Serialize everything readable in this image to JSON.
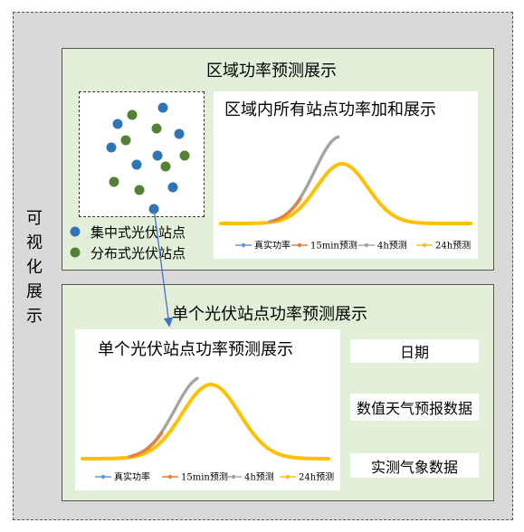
{
  "side_label": [
    "可",
    "视",
    "化",
    "展",
    "示"
  ],
  "region_panel": {
    "title": "区域功率预测展示",
    "legend": {
      "centralized": "集中式光伏站点",
      "distributed": "分布式光伏站点"
    },
    "chart_title": "区域内所有站点功率加和展示"
  },
  "single_panel": {
    "title": "单个光伏站点功率预测展示",
    "chart_title": "单个光伏站点功率预测展示",
    "date_label": "日期",
    "nwp_label": "数值天气预报数据",
    "weather_label": "实测气象数据"
  },
  "colors": {
    "outer_bg": "#d9d9d9",
    "panel_bg": "#e2efd9",
    "centralized_dot": "#2e75b6",
    "distributed_dot": "#548235",
    "actual": "#5b9bd5",
    "f15min": "#ed7d31",
    "f4h": "#a5a5a5",
    "f24h": "#ffc000",
    "arrow": "#4472c4"
  },
  "chart_data": [
    {
      "type": "line",
      "title": "区域内所有站点功率加和展示",
      "series": [
        {
          "name": "真实功率",
          "color": "#5b9bd5"
        },
        {
          "name": "15min预测",
          "color": "#ed7d31"
        },
        {
          "name": "4h预测",
          "color": "#a5a5a5"
        },
        {
          "name": "24h预测",
          "color": "#ffc000"
        }
      ]
    },
    {
      "type": "line",
      "title": "单个光伏站点功率预测展示",
      "series": [
        {
          "name": "真实功率",
          "color": "#5b9bd5"
        },
        {
          "name": "15min预测",
          "color": "#ed7d31"
        },
        {
          "name": "4h预测",
          "color": "#a5a5a5"
        },
        {
          "name": "24h预测",
          "color": "#ffc000"
        }
      ]
    }
  ]
}
